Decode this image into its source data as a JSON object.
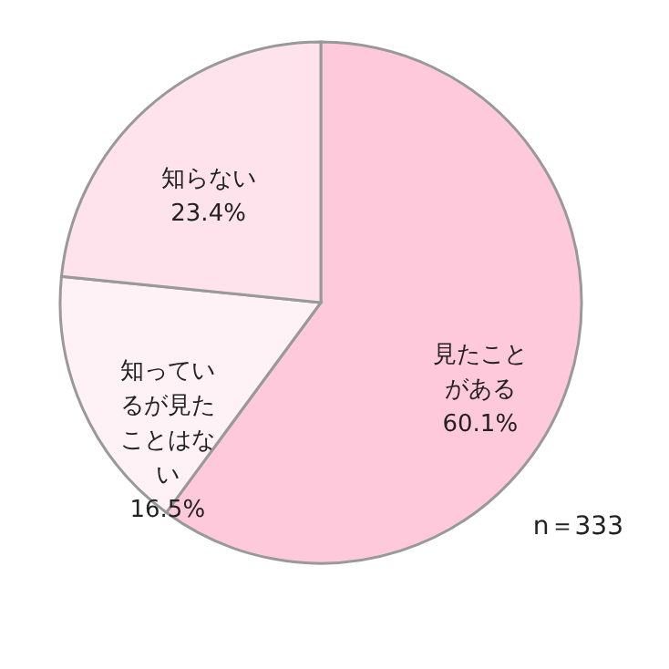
{
  "chart_data": {
    "type": "pie",
    "categories": [
      "見たことがある",
      "知っているが見たことはない",
      "知らない"
    ],
    "values": [
      60.1,
      16.5,
      23.4
    ],
    "colors": [
      "#ffc9dc",
      "#fff2f6",
      "#ffe3ec"
    ],
    "value_labels": [
      "60.1%",
      "16.5%",
      "23.4%"
    ],
    "annotations": [
      "n＝333"
    ]
  }
}
